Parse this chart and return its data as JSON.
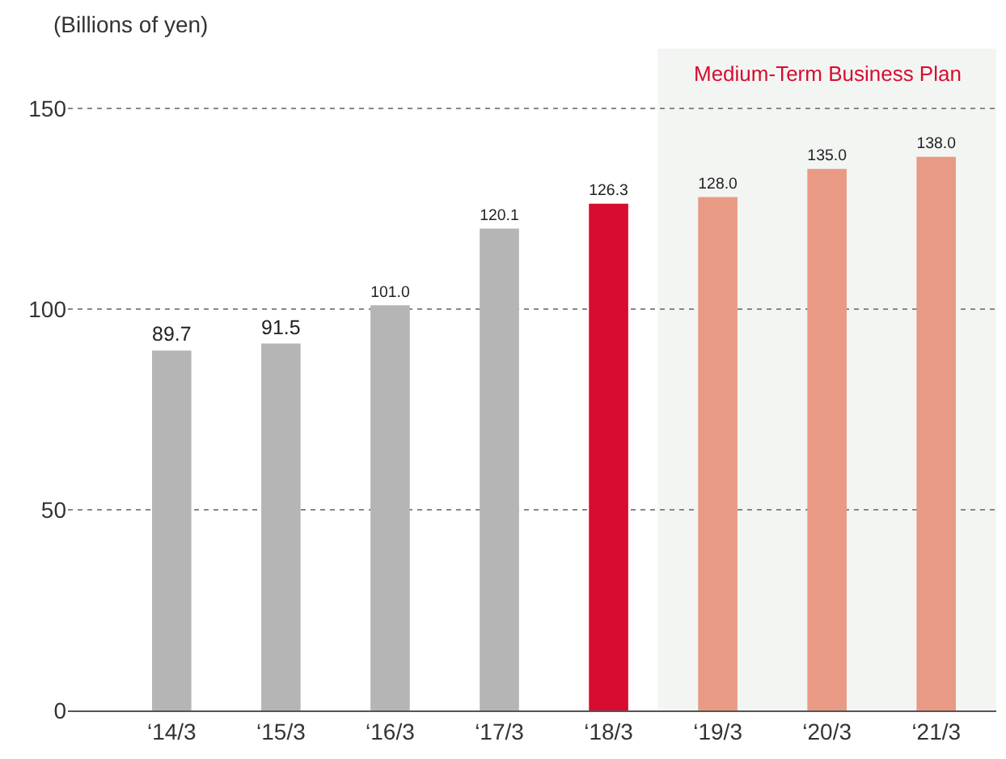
{
  "chart_data": {
    "type": "bar",
    "ylabel": "(Billions of yen)",
    "categories": [
      "‘14/3",
      "‘15/3",
      "‘16/3",
      "‘17/3",
      "‘18/3",
      "‘19/3",
      "‘20/3",
      "‘21/3"
    ],
    "values": [
      89.7,
      91.5,
      101.0,
      120.1,
      126.3,
      128.0,
      135.0,
      138.0
    ],
    "colors": [
      "#b4b5b4",
      "#b4b5b4",
      "#b4b5b4",
      "#b4b5b4",
      "#d70c30",
      "#e99a85",
      "#e99a85",
      "#e99a85"
    ],
    "value_labels": [
      "89.7",
      "91.5",
      "101.0",
      "120.1",
      "126.3",
      "128.0",
      "135.0",
      "138.0"
    ],
    "ylim": [
      0,
      165
    ],
    "yticks": [
      0,
      50,
      100,
      150
    ],
    "grid": "y",
    "bands": [
      {
        "axis": "x",
        "from": "‘19/3",
        "to": "‘21/3",
        "label": "Medium-Term Business Plan",
        "color": "#f3f5f3"
      }
    ]
  }
}
